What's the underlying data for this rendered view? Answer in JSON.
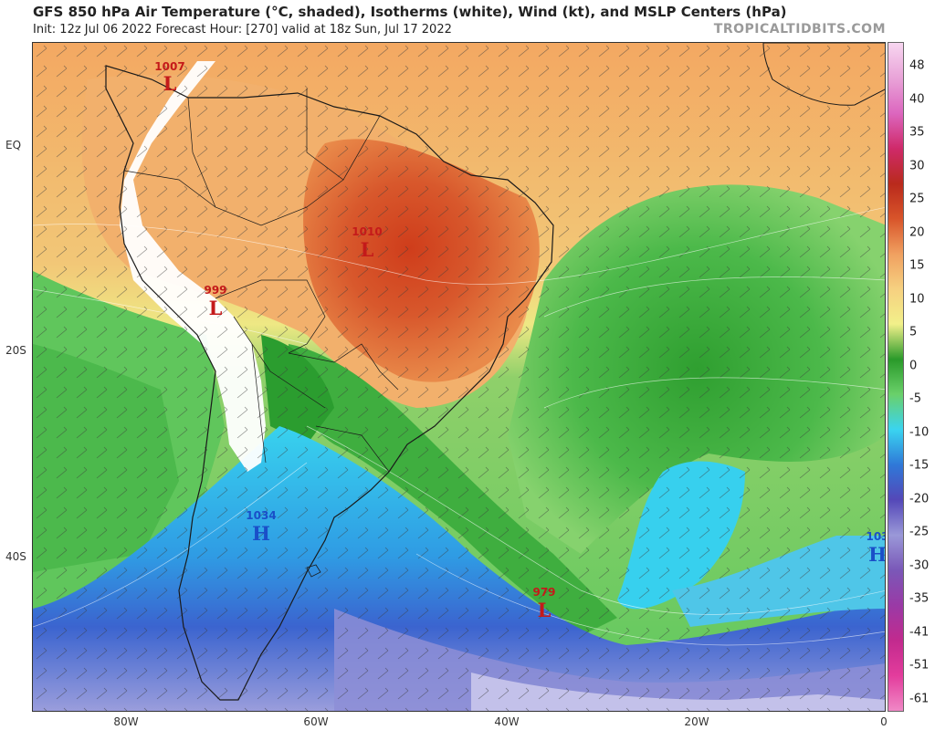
{
  "header": {
    "title": "GFS 850 hPa Air Temperature (°C, shaded), Isotherms (white), Wind (kt), and MSLP Centers (hPa)",
    "subtitle": "Init: 12z Jul 06 2022   Forecast Hour: [270]   valid at 18z Sun, Jul 17 2022",
    "brand": "TROPICALTIDBITS.COM"
  },
  "axes": {
    "lat_labels": [
      "EQ",
      "20S",
      "40S"
    ],
    "lon_labels": [
      "80W",
      "60W",
      "40W",
      "20W",
      "0"
    ]
  },
  "colorbar": {
    "labels": [
      "48",
      "40",
      "35",
      "30",
      "25",
      "20",
      "15",
      "10",
      "5",
      "0",
      "-5",
      "-10",
      "-15",
      "-20",
      "-25",
      "-30",
      "-35",
      "-41",
      "-51",
      "-61"
    ],
    "colors": [
      "#f7d6f0",
      "#e9a3d8",
      "#dc67bf",
      "#cf2a6a",
      "#b92a1c",
      "#d8542a",
      "#f0a060",
      "#f6d080",
      "#f2f08a",
      "#2a9a2a",
      "#6ad06a",
      "#3ad4f0",
      "#2f78d8",
      "#5448b8",
      "#9a98d8",
      "#7a58b8",
      "#9a3aa6",
      "#c22a8e",
      "#e33c9c",
      "#f088c6"
    ]
  },
  "mslp_centers": [
    {
      "type": "L",
      "value": "1007",
      "color": "#c41a1a"
    },
    {
      "type": "L",
      "value": "1010",
      "color": "#c41a1a"
    },
    {
      "type": "L",
      "value": "999",
      "color": "#c41a1a"
    },
    {
      "type": "H",
      "value": "1034",
      "color": "#1a4fc8"
    },
    {
      "type": "L",
      "value": "979",
      "color": "#c41a1a"
    },
    {
      "type": "H",
      "value": "103",
      "color": "#1a4fc8"
    }
  ]
}
